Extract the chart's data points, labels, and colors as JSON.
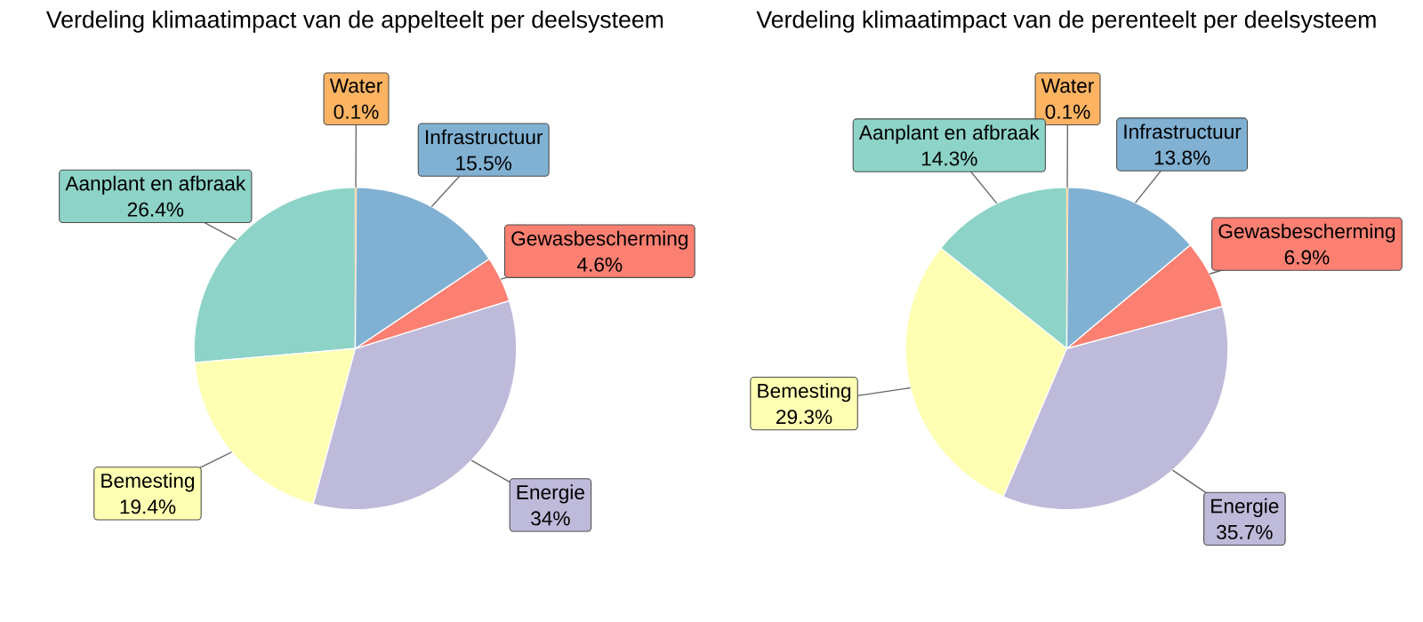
{
  "chart_data": [
    {
      "type": "pie",
      "title": "Verdeling klimaatimpact van de appelteelt per deelsysteem",
      "categories": [
        "Water",
        "Infrastructuur",
        "Gewasbescherming",
        "Energie",
        "Bemesting",
        "Aanplant en afbraak"
      ],
      "values": [
        0.1,
        15.5,
        4.6,
        34,
        19.4,
        26.4
      ],
      "value_labels": [
        "0.1%",
        "15.5%",
        "4.6%",
        "34%",
        "19.4%",
        "26.4%"
      ],
      "colors": [
        "#fdb462",
        "#80b1d3",
        "#fb8072",
        "#bebada",
        "#ffffb3",
        "#8dd3c7"
      ]
    },
    {
      "type": "pie",
      "title": "Verdeling klimaatimpact van de perenteelt per deelsysteem",
      "categories": [
        "Water",
        "Infrastructuur",
        "Gewasbescherming",
        "Energie",
        "Bemesting",
        "Aanplant en afbraak"
      ],
      "values": [
        0.1,
        13.8,
        6.9,
        35.7,
        29.3,
        14.3
      ],
      "value_labels": [
        "0.1%",
        "13.8%",
        "6.9%",
        "35.7%",
        "29.3%",
        "14.3%"
      ],
      "colors": [
        "#fdb462",
        "#80b1d3",
        "#fb8072",
        "#bebada",
        "#ffffb3",
        "#8dd3c7"
      ]
    }
  ]
}
